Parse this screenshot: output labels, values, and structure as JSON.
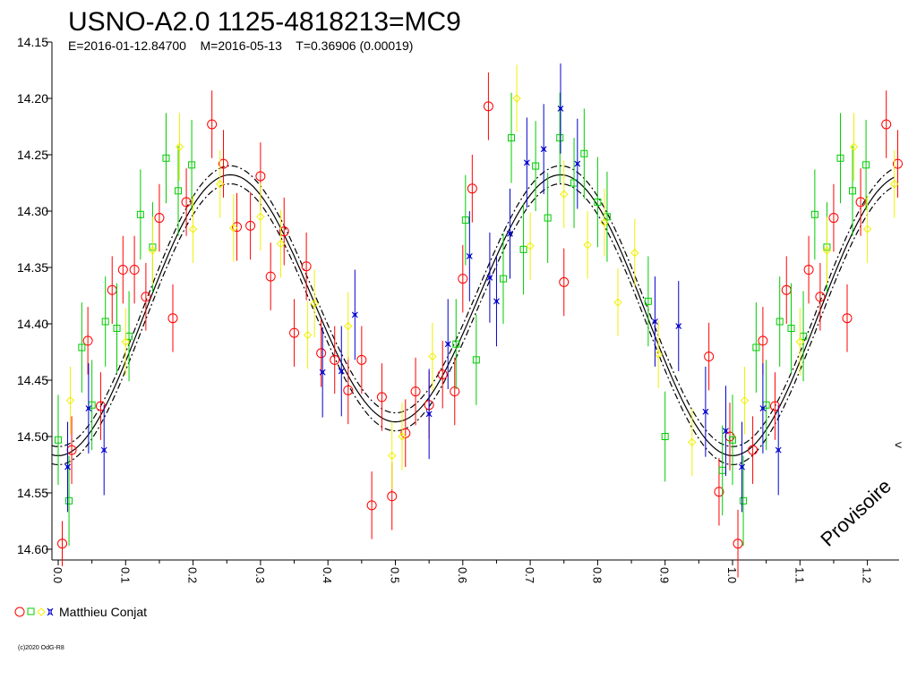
{
  "chart_data": {
    "type": "scatter",
    "title": "USNO-A2.0 1125-4818213=MC9",
    "subtitle": "E=2016-01-12.84700    M=2016-05-13    T=0.36906 (0.00019)",
    "watermark": "Provisoire",
    "copyright": "(c)2020 OdG-R8",
    "observer": "Matthieu Conjat",
    "y_inverted": true,
    "ylim": [
      14.15,
      14.6
    ],
    "xlim": [
      -0.01,
      1.25
    ],
    "y_ticks": [
      "14.15",
      "14.20",
      "14.25",
      "14.30",
      "14.35",
      "14.40",
      "14.45",
      "14.50",
      "14.55",
      "14.60"
    ],
    "x_ticks": [
      "0.0",
      "0.1",
      "0.2",
      "0.3",
      "0.4",
      "0.5",
      "0.6",
      "0.7",
      "0.8",
      "0.9",
      "1.0",
      "1.1",
      "1.2"
    ],
    "edge_marker": "<",
    "model": {
      "max_phase": 0.24,
      "min_phase": 0.5,
      "max_mag_phase_0_24": 14.27,
      "max_mag_phase_0_75": 14.26,
      "min_mag_phase_0_50": 14.49,
      "min_mag_phase_1_00": 14.52,
      "band": 0.008
    },
    "colors": {
      "red": "#ff0000",
      "green": "#00cc00",
      "yellow": "#f0f000",
      "blue": "#0000cc",
      "model": "#000000"
    },
    "series": [
      {
        "marker": "circle",
        "color": "red",
        "points": [
          [
            0.006,
            14.595,
            0.02
          ],
          [
            0.02,
            14.512,
            0.03
          ],
          [
            0.044,
            14.415,
            0.03
          ],
          [
            0.063,
            14.473,
            0.03
          ],
          [
            0.08,
            14.37,
            0.03
          ],
          [
            0.096,
            14.352,
            0.03
          ],
          [
            0.113,
            14.352,
            0.03
          ],
          [
            0.13,
            14.376,
            0.03
          ],
          [
            0.15,
            14.306,
            0.03
          ],
          [
            0.17,
            14.395,
            0.03
          ],
          [
            0.19,
            14.292,
            0.03
          ],
          [
            0.228,
            14.223,
            0.03
          ],
          [
            0.245,
            14.258,
            0.03
          ],
          [
            0.265,
            14.314,
            0.03
          ],
          [
            0.285,
            14.313,
            0.03
          ],
          [
            0.3,
            14.269,
            0.03
          ],
          [
            0.315,
            14.358,
            0.03
          ],
          [
            0.335,
            14.318,
            0.03
          ],
          [
            0.35,
            14.408,
            0.03
          ],
          [
            0.368,
            14.349,
            0.03
          ],
          [
            0.39,
            14.426,
            0.03
          ],
          [
            0.41,
            14.432,
            0.03
          ],
          [
            0.43,
            14.459,
            0.03
          ],
          [
            0.45,
            14.432,
            0.03
          ],
          [
            0.465,
            14.561,
            0.03
          ],
          [
            0.48,
            14.465,
            0.03
          ],
          [
            0.495,
            14.553,
            0.03
          ],
          [
            0.515,
            14.497,
            0.03
          ],
          [
            0.53,
            14.46,
            0.03
          ],
          [
            0.55,
            14.472,
            0.03
          ],
          [
            0.57,
            14.445,
            0.03
          ],
          [
            0.588,
            14.46,
            0.03
          ],
          [
            0.6,
            14.36,
            0.03
          ],
          [
            0.614,
            14.28,
            0.03
          ],
          [
            0.638,
            14.207,
            0.03
          ],
          [
            0.75,
            14.363,
            0.03
          ],
          [
            0.965,
            14.429,
            0.03
          ],
          [
            0.98,
            14.549,
            0.03
          ],
          [
            0.996,
            14.5,
            0.03
          ],
          [
            1.008,
            14.595,
            0.03
          ],
          [
            1.03,
            14.512,
            0.03
          ],
          [
            1.045,
            14.415,
            0.03
          ],
          [
            1.063,
            14.473,
            0.03
          ],
          [
            1.08,
            14.37,
            0.03
          ],
          [
            1.113,
            14.352,
            0.03
          ],
          [
            1.13,
            14.376,
            0.03
          ],
          [
            1.15,
            14.306,
            0.03
          ],
          [
            1.17,
            14.395,
            0.03
          ],
          [
            1.19,
            14.292,
            0.03
          ],
          [
            1.228,
            14.223,
            0.03
          ],
          [
            1.245,
            14.258,
            0.03
          ]
        ]
      },
      {
        "marker": "square",
        "color": "green",
        "points": [
          [
            0.0,
            14.503,
            0.04
          ],
          [
            0.016,
            14.557,
            0.04
          ],
          [
            0.035,
            14.421,
            0.04
          ],
          [
            0.05,
            14.472,
            0.04
          ],
          [
            0.07,
            14.398,
            0.04
          ],
          [
            0.087,
            14.404,
            0.04
          ],
          [
            0.105,
            14.411,
            0.04
          ],
          [
            0.122,
            14.303,
            0.04
          ],
          [
            0.14,
            14.332,
            0.04
          ],
          [
            0.16,
            14.253,
            0.04
          ],
          [
            0.178,
            14.282,
            0.04
          ],
          [
            0.198,
            14.259,
            0.04
          ],
          [
            0.59,
            14.418,
            0.04
          ],
          [
            0.604,
            14.308,
            0.04
          ],
          [
            0.62,
            14.432,
            0.04
          ],
          [
            0.66,
            14.36,
            0.04
          ],
          [
            0.672,
            14.235,
            0.04
          ],
          [
            0.69,
            14.334,
            0.04
          ],
          [
            0.708,
            14.26,
            0.04
          ],
          [
            0.726,
            14.306,
            0.04
          ],
          [
            0.744,
            14.235,
            0.04
          ],
          [
            0.765,
            14.275,
            0.04
          ],
          [
            0.78,
            14.249,
            0.04
          ],
          [
            0.8,
            14.292,
            0.04
          ],
          [
            0.814,
            14.305,
            0.04
          ],
          [
            0.875,
            14.38,
            0.04
          ],
          [
            0.9,
            14.5,
            0.04
          ],
          [
            0.985,
            14.53,
            0.04
          ],
          [
            1.0,
            14.503,
            0.04
          ],
          [
            1.016,
            14.557,
            0.04
          ],
          [
            1.035,
            14.421,
            0.04
          ],
          [
            1.05,
            14.472,
            0.04
          ],
          [
            1.07,
            14.398,
            0.04
          ],
          [
            1.087,
            14.404,
            0.04
          ],
          [
            1.105,
            14.411,
            0.04
          ],
          [
            1.122,
            14.303,
            0.04
          ],
          [
            1.14,
            14.332,
            0.04
          ],
          [
            1.16,
            14.253,
            0.04
          ],
          [
            1.178,
            14.282,
            0.04
          ],
          [
            1.198,
            14.259,
            0.04
          ]
        ]
      },
      {
        "marker": "diamond",
        "color": "yellow",
        "points": [
          [
            0.018,
            14.468,
            0.03
          ],
          [
            0.1,
            14.416,
            0.03
          ],
          [
            0.14,
            14.335,
            0.03
          ],
          [
            0.18,
            14.243,
            0.03
          ],
          [
            0.2,
            14.316,
            0.03
          ],
          [
            0.24,
            14.276,
            0.03
          ],
          [
            0.26,
            14.315,
            0.03
          ],
          [
            0.3,
            14.305,
            0.03
          ],
          [
            0.33,
            14.329,
            0.03
          ],
          [
            0.37,
            14.41,
            0.03
          ],
          [
            0.38,
            14.382,
            0.03
          ],
          [
            0.43,
            14.402,
            0.03
          ],
          [
            0.495,
            14.517,
            0.03
          ],
          [
            0.51,
            14.5,
            0.03
          ],
          [
            0.555,
            14.429,
            0.03
          ],
          [
            0.68,
            14.2,
            0.03
          ],
          [
            0.7,
            14.331,
            0.03
          ],
          [
            0.75,
            14.285,
            0.03
          ],
          [
            0.785,
            14.33,
            0.03
          ],
          [
            0.81,
            14.31,
            0.03
          ],
          [
            0.83,
            14.381,
            0.03
          ],
          [
            0.855,
            14.337,
            0.03
          ],
          [
            0.89,
            14.427,
            0.03
          ],
          [
            0.94,
            14.505,
            0.03
          ],
          [
            1.018,
            14.468,
            0.03
          ],
          [
            1.1,
            14.416,
            0.03
          ],
          [
            1.14,
            14.335,
            0.03
          ],
          [
            1.18,
            14.243,
            0.03
          ],
          [
            1.2,
            14.316,
            0.03
          ],
          [
            1.24,
            14.276,
            0.03
          ]
        ]
      },
      {
        "marker": "star",
        "color": "blue",
        "points": [
          [
            0.014,
            14.527,
            0.04
          ],
          [
            0.045,
            14.475,
            0.04
          ],
          [
            0.068,
            14.512,
            0.04
          ],
          [
            0.392,
            14.443,
            0.04
          ],
          [
            0.42,
            14.442,
            0.04
          ],
          [
            0.44,
            14.392,
            0.04
          ],
          [
            0.55,
            14.48,
            0.04
          ],
          [
            0.578,
            14.418,
            0.04
          ],
          [
            0.61,
            14.34,
            0.04
          ],
          [
            0.64,
            14.359,
            0.04
          ],
          [
            0.65,
            14.38,
            0.04
          ],
          [
            0.67,
            14.32,
            0.04
          ],
          [
            0.695,
            14.257,
            0.04
          ],
          [
            0.72,
            14.245,
            0.04
          ],
          [
            0.745,
            14.209,
            0.04
          ],
          [
            0.77,
            14.258,
            0.04
          ],
          [
            0.885,
            14.398,
            0.04
          ],
          [
            0.92,
            14.402,
            0.04
          ],
          [
            0.96,
            14.478,
            0.04
          ],
          [
            0.99,
            14.495,
            0.04
          ],
          [
            1.014,
            14.527,
            0.04
          ],
          [
            1.045,
            14.475,
            0.04
          ],
          [
            1.068,
            14.512,
            0.04
          ]
        ]
      }
    ]
  }
}
